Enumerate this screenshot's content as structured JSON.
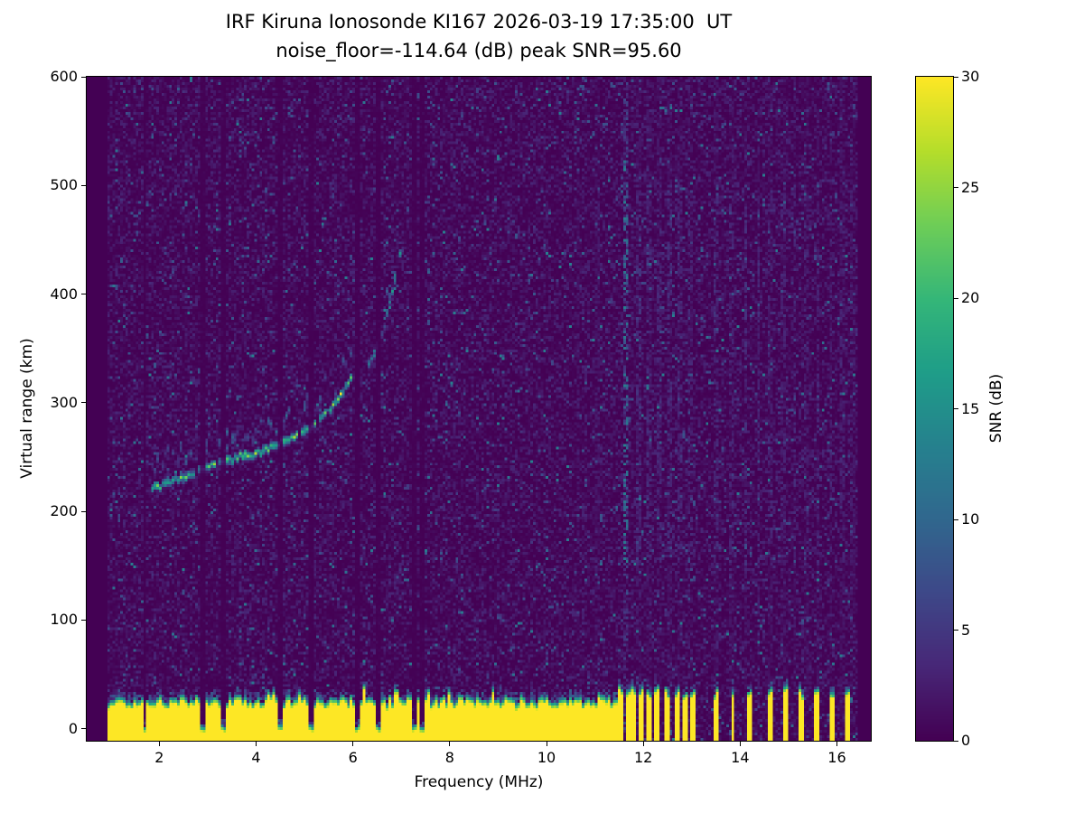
{
  "chart_data": {
    "type": "heatmap",
    "title": "IRF Kiruna Ionosonde KI167 2026-03-19 17:35:00  UT",
    "subtitle": "noise_floor=-114.64 (dB) peak SNR=95.60",
    "xlabel": "Frequency (MHz)",
    "ylabel": "Virtual range (km)",
    "x_range": [
      0.5,
      16.7
    ],
    "y_range": [
      -11,
      600
    ],
    "x_ticks": [
      2,
      4,
      6,
      8,
      10,
      12,
      14,
      16
    ],
    "y_ticks": [
      0,
      100,
      200,
      300,
      400,
      500,
      600
    ],
    "colormap": "viridis",
    "background_color": "#440154",
    "colorbar": {
      "label": "SNR (dB)",
      "range": [
        0,
        30
      ],
      "ticks": [
        0,
        5,
        10,
        15,
        20,
        25,
        30
      ]
    },
    "noise_floor_db": -114.64,
    "peak_snr_db": 95.6,
    "data_freq_range": [
      0.95,
      16.45
    ],
    "grid": {
      "cols": 304,
      "rows": 246
    },
    "ground_clutter": {
      "base_top_km": 26,
      "full_band_max_freq": 11.5,
      "notches": [
        1.7,
        2.9,
        3.32,
        4.52,
        5.15,
        6.08,
        6.52,
        7.28,
        7.42
      ],
      "bars": [
        11.55,
        11.68,
        11.82,
        11.96,
        12.1,
        12.28,
        12.5,
        12.68,
        12.88,
        13.02,
        13.5,
        13.85,
        14.18,
        14.6,
        14.95,
        15.28,
        15.6,
        15.92,
        16.22
      ]
    },
    "echo_trace": {
      "main": [
        [
          1.85,
          221
        ],
        [
          2.2,
          227
        ],
        [
          2.6,
          234
        ],
        [
          3.0,
          241
        ],
        [
          3.4,
          247
        ],
        [
          3.8,
          252
        ],
        [
          4.2,
          257
        ],
        [
          4.6,
          264
        ],
        [
          5.0,
          274
        ],
        [
          5.3,
          285
        ],
        [
          5.6,
          298
        ],
        [
          5.8,
          310
        ],
        [
          5.95,
          324
        ]
      ],
      "upper": [
        [
          6.32,
          333
        ],
        [
          6.5,
          350
        ],
        [
          6.65,
          370
        ],
        [
          6.78,
          392
        ],
        [
          6.88,
          415
        ],
        [
          6.95,
          438
        ]
      ]
    },
    "interference_lines": [
      {
        "f": 11.62,
        "w": 0.05,
        "a": 1.3
      },
      {
        "f": 10.65,
        "w": 0.04,
        "a": 0.22
      },
      {
        "f": 11.05,
        "w": 0.04,
        "a": 0.2
      },
      {
        "f": 11.9,
        "w": 0.04,
        "a": 0.5
      },
      {
        "f": 12.12,
        "w": 0.04,
        "a": 0.45
      },
      {
        "f": 12.33,
        "w": 0.04,
        "a": 0.4
      },
      {
        "f": 12.55,
        "w": 0.04,
        "a": 0.45
      },
      {
        "f": 12.75,
        "w": 0.04,
        "a": 0.4
      },
      {
        "f": 12.98,
        "w": 0.04,
        "a": 0.4
      },
      {
        "f": 13.5,
        "w": 0.04,
        "a": 0.45
      },
      {
        "f": 13.82,
        "w": 0.04,
        "a": 0.4
      },
      {
        "f": 14.12,
        "w": 0.04,
        "a": 0.45
      },
      {
        "f": 14.38,
        "w": 0.04,
        "a": 0.4
      },
      {
        "f": 14.62,
        "w": 0.04,
        "a": 0.4
      },
      {
        "f": 14.88,
        "w": 0.04,
        "a": 0.35
      },
      {
        "f": 15.12,
        "w": 0.04,
        "a": 0.4
      },
      {
        "f": 15.38,
        "w": 0.04,
        "a": 0.35
      },
      {
        "f": 15.62,
        "w": 0.04,
        "a": 0.4
      },
      {
        "f": 15.88,
        "w": 0.04,
        "a": 0.35
      },
      {
        "f": 16.12,
        "w": 0.04,
        "a": 0.35
      },
      {
        "f": 16.32,
        "w": 0.04,
        "a": 0.3
      }
    ]
  }
}
